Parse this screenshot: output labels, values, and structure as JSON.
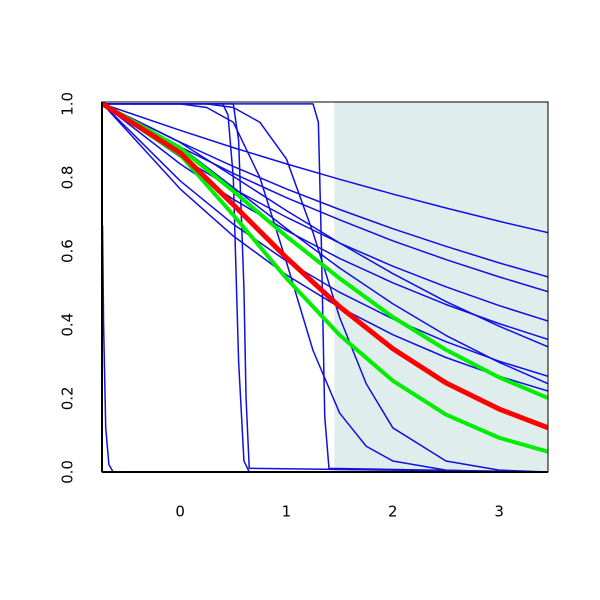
{
  "chart_data": {
    "type": "line",
    "xlim": [
      -0.735,
      3.46
    ],
    "ylim": [
      0,
      1.005
    ],
    "xticks": [
      0,
      1,
      2,
      3
    ],
    "yticks": [
      {
        "value": 0,
        "label": "0.0"
      },
      {
        "value": 0.2,
        "label": "0.2"
      },
      {
        "value": 0.4,
        "label": "0.4"
      },
      {
        "value": 0.6,
        "label": "0.6"
      },
      {
        "value": 0.8,
        "label": "0.8"
      },
      {
        "value": 1,
        "label": "1.0"
      }
    ],
    "shade": {
      "xlim": [
        1.45,
        3.46
      ],
      "color": "#e0eded"
    },
    "series": [
      {
        "color": "#1010e0",
        "line_width": 1.5,
        "x": [
          -0.73,
          -0.72,
          -0.7,
          -0.67,
          -0.63,
          3.46
        ],
        "values": [
          0.67,
          0.4,
          0.12,
          0.02,
          0,
          0
        ]
      },
      {
        "color": "#1010e0",
        "line_width": 1.5,
        "x": [
          -0.73,
          0.4,
          0.45,
          0.5,
          0.55,
          0.6,
          0.65,
          3.46
        ],
        "values": [
          1,
          1,
          0.97,
          0.8,
          0.3,
          0.03,
          0,
          0
        ]
      },
      {
        "color": "#1010e0",
        "line_width": 1.5,
        "x": [
          -0.73,
          0.5,
          0.55,
          0.6,
          0.62,
          0.65,
          3.46
        ],
        "values": [
          1,
          1,
          0.9,
          0.5,
          0.2,
          0.01,
          0
        ]
      },
      {
        "color": "#1010e0",
        "line_width": 1.5,
        "x": [
          -0.73,
          1.25,
          1.3,
          1.33,
          1.36,
          1.4,
          3.46
        ],
        "values": [
          1,
          1,
          0.95,
          0.6,
          0.15,
          0.01,
          0
        ]
      },
      {
        "color": "#1010e0",
        "line_width": 1.5,
        "x": [
          -0.73,
          0,
          0.25,
          0.5,
          0.75,
          1,
          1.25,
          1.5,
          1.75,
          2,
          2.5,
          3,
          3.46
        ],
        "values": [
          1,
          1,
          0.99,
          0.95,
          0.8,
          0.57,
          0.33,
          0.16,
          0.07,
          0.03,
          0.005,
          0,
          0
        ]
      },
      {
        "color": "#1010e0",
        "line_width": 1.5,
        "x": [
          -0.73,
          0,
          0.25,
          0.5,
          0.75,
          1,
          1.25,
          1.5,
          1.75,
          2,
          2.5,
          3,
          3.46
        ],
        "values": [
          1,
          1,
          1,
          0.99,
          0.95,
          0.85,
          0.65,
          0.42,
          0.24,
          0.12,
          0.03,
          0.005,
          0
        ]
      },
      {
        "color": "#1010e0",
        "line_width": 1.5,
        "x": [
          -0.73,
          0,
          0.5,
          1,
          1.5,
          2,
          2.5,
          3,
          3.46
        ],
        "values": [
          1,
          0.928,
          0.881,
          0.837,
          0.795,
          0.755,
          0.717,
          0.681,
          0.65
        ]
      },
      {
        "color": "#1010e0",
        "line_width": 1.5,
        "x": [
          -0.73,
          0,
          0.5,
          1,
          1.5,
          2,
          2.5,
          3,
          3.46
        ],
        "values": [
          1,
          0.896,
          0.83,
          0.769,
          0.713,
          0.661,
          0.613,
          0.568,
          0.53
        ]
      },
      {
        "color": "#1010e0",
        "line_width": 1.5,
        "x": [
          -0.73,
          0,
          0.5,
          1,
          1.5,
          2,
          2.5,
          3,
          3.46
        ],
        "values": [
          1,
          0.883,
          0.811,
          0.745,
          0.685,
          0.628,
          0.577,
          0.53,
          0.49
        ]
      },
      {
        "color": "#1010e0",
        "line_width": 1.5,
        "x": [
          -0.73,
          0,
          0.5,
          1,
          1.5,
          2,
          2.5,
          3,
          3.46
        ],
        "values": [
          1,
          0.856,
          0.769,
          0.692,
          0.622,
          0.559,
          0.503,
          0.452,
          0.41
        ]
      },
      {
        "color": "#1010e0",
        "line_width": 1.5,
        "x": [
          -0.73,
          0,
          0.5,
          1,
          1.5,
          2,
          2.5,
          3,
          3.46
        ],
        "values": [
          1,
          0.837,
          0.741,
          0.656,
          0.58,
          0.514,
          0.455,
          0.403,
          0.36
        ]
      },
      {
        "color": "#1010e0",
        "line_width": 1.5,
        "x": [
          -0.73,
          0,
          0.5,
          1,
          1.5,
          2,
          2.5,
          3,
          3.46
        ],
        "values": [
          1,
          0.895,
          0.803,
          0.71,
          0.622,
          0.539,
          0.463,
          0.396,
          0.34
        ]
      },
      {
        "color": "#1010e0",
        "line_width": 1.5,
        "x": [
          -0.73,
          0,
          0.5,
          1,
          1.5,
          2,
          2.5,
          3,
          3.46
        ],
        "values": [
          1,
          0.791,
          0.673,
          0.573,
          0.488,
          0.416,
          0.354,
          0.301,
          0.26
        ]
      },
      {
        "color": "#1010e0",
        "line_width": 1.5,
        "x": [
          -0.73,
          0,
          0.5,
          1,
          1.5,
          2,
          2.5,
          3,
          3.46
        ],
        "values": [
          1,
          0.884,
          0.773,
          0.661,
          0.554,
          0.457,
          0.371,
          0.298,
          0.24
        ]
      },
      {
        "color": "#1010e0",
        "line_width": 1.5,
        "x": [
          -0.73,
          0,
          0.5,
          1,
          1.5,
          2,
          2.5,
          3,
          3.46
        ],
        "values": [
          1,
          0.769,
          0.641,
          0.535,
          0.447,
          0.373,
          0.311,
          0.26,
          0.22
        ]
      },
      {
        "color": "#00ee00",
        "line_width": 4,
        "x": [
          -0.73,
          0,
          0.5,
          1,
          1.5,
          2,
          2.5,
          3,
          3.46
        ],
        "values": [
          1,
          0.88,
          0.763,
          0.64,
          0.526,
          0.421,
          0.332,
          0.257,
          0.201
        ]
      },
      {
        "color": "#00ee00",
        "line_width": 4,
        "x": [
          -0.73,
          0,
          0.5,
          1,
          1.5,
          2,
          2.5,
          3,
          3.46
        ],
        "values": [
          1,
          0.862,
          0.698,
          0.526,
          0.372,
          0.248,
          0.156,
          0.093,
          0.055
        ]
      },
      {
        "color": "#ff0000",
        "line_width": 5,
        "x": [
          -0.73,
          0,
          0.5,
          1,
          1.5,
          2,
          2.5,
          3,
          3.46
        ],
        "values": [
          1,
          0.867,
          0.726,
          0.582,
          0.449,
          0.335,
          0.242,
          0.171,
          0.12
        ]
      }
    ]
  }
}
